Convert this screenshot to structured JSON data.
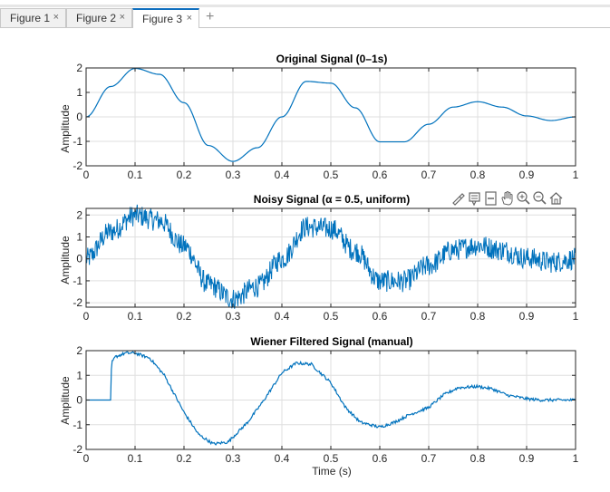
{
  "tabs": [
    {
      "label": "Figure 1",
      "active": false
    },
    {
      "label": "Figure 2",
      "active": false
    },
    {
      "label": "Figure 3",
      "active": true
    }
  ],
  "tab_close_glyph": "×",
  "add_tab_glyph": "+",
  "toolbar_icons": [
    "brush-icon",
    "data-tips-icon",
    "legend-icon",
    "pan-hand-icon",
    "zoom-in-icon",
    "zoom-out-icon",
    "home-icon"
  ],
  "colors": {
    "line": "#0072BD",
    "grid": "#dfdfdf",
    "axis": "#262626"
  },
  "chart_data": [
    {
      "type": "line",
      "title": "Original Signal (0–1s)",
      "xlabel": "",
      "ylabel": "Amplitude",
      "xlim": [
        0,
        1
      ],
      "ylim": [
        -2,
        2
      ],
      "xticks": [
        "0",
        "0.1",
        "0.2",
        "0.3",
        "0.4",
        "0.5",
        "0.6",
        "0.7",
        "0.8",
        "0.9",
        "1"
      ],
      "yticks": [
        "-2",
        "-1",
        "0",
        "1",
        "2"
      ],
      "grid": true,
      "x": [
        0,
        0.05,
        0.1,
        0.15,
        0.2,
        0.25,
        0.3,
        0.35,
        0.4,
        0.45,
        0.5,
        0.55,
        0.6,
        0.65,
        0.7,
        0.75,
        0.8,
        0.85,
        0.9,
        0.95,
        1
      ],
      "y": [
        0,
        1.24,
        1.98,
        1.74,
        0.58,
        -1.17,
        -1.82,
        -1.26,
        0,
        1.45,
        1.38,
        0.37,
        -1.02,
        -1.02,
        -0.3,
        0.4,
        0.62,
        0.4,
        0.04,
        -0.15,
        0
      ]
    },
    {
      "type": "line",
      "title": "Noisy Signal (α = 0.5, uniform)",
      "xlabel": "",
      "ylabel": "Amplitude",
      "xlim": [
        0,
        1
      ],
      "ylim": [
        -2.2,
        2.3
      ],
      "xticks": [
        "0",
        "0.1",
        "0.2",
        "0.3",
        "0.4",
        "0.5",
        "0.6",
        "0.7",
        "0.8",
        "0.9",
        "1"
      ],
      "yticks": [
        "-2",
        "-1",
        "0",
        "1",
        "2"
      ],
      "grid": true,
      "noise_amplitude": 0.5,
      "noise_type": "uniform",
      "x": [
        0,
        0.05,
        0.1,
        0.15,
        0.2,
        0.25,
        0.3,
        0.35,
        0.4,
        0.45,
        0.5,
        0.55,
        0.6,
        0.65,
        0.7,
        0.75,
        0.8,
        0.85,
        0.9,
        0.95,
        1
      ],
      "y": [
        0,
        1.24,
        1.98,
        1.74,
        0.58,
        -1.17,
        -1.82,
        -1.26,
        0,
        1.45,
        1.38,
        0.37,
        -1.02,
        -1.02,
        -0.3,
        0.4,
        0.62,
        0.4,
        0.04,
        -0.15,
        0
      ]
    },
    {
      "type": "line",
      "title": "Wiener Filtered Signal (manual)",
      "xlabel": "Time (s)",
      "ylabel": "Amplitude",
      "xlim": [
        0,
        1
      ],
      "ylim": [
        -2,
        2
      ],
      "xticks": [
        "0",
        "0.1",
        "0.2",
        "0.3",
        "0.4",
        "0.5",
        "0.6",
        "0.7",
        "0.8",
        "0.9",
        "1"
      ],
      "yticks": [
        "-2",
        "-1",
        "0",
        "1",
        "2"
      ],
      "grid": true,
      "x": [
        0,
        0.05,
        0.052,
        0.06,
        0.08,
        0.1,
        0.13,
        0.16,
        0.2,
        0.23,
        0.26,
        0.29,
        0.33,
        0.36,
        0.4,
        0.43,
        0.46,
        0.5,
        0.53,
        0.56,
        0.6,
        0.63,
        0.66,
        0.7,
        0.73,
        0.76,
        0.8,
        0.83,
        0.86,
        0.9,
        0.93,
        0.96,
        1
      ],
      "y": [
        0,
        0,
        1.5,
        1.75,
        1.9,
        1.9,
        1.7,
        1.0,
        -0.5,
        -1.4,
        -1.78,
        -1.7,
        -0.9,
        -0.1,
        1.1,
        1.5,
        1.45,
        0.7,
        -0.3,
        -0.9,
        -1.1,
        -0.9,
        -0.6,
        -0.3,
        0.2,
        0.5,
        0.55,
        0.45,
        0.2,
        0.05,
        0.0,
        0.0,
        0
      ]
    }
  ]
}
